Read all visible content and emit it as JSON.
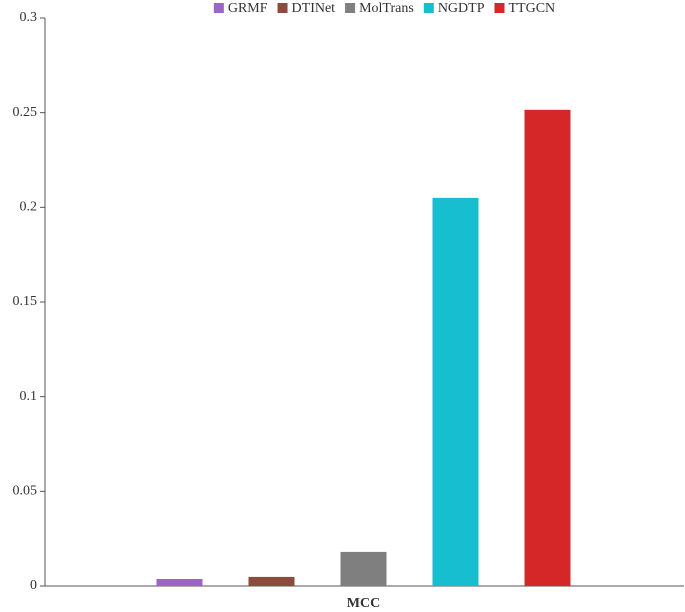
{
  "chart_data": {
    "type": "bar",
    "categories": [
      "MCC"
    ],
    "series": [
      {
        "name": "GRMF",
        "color": "#9b64c8",
        "values": [
          0.0037
        ]
      },
      {
        "name": "DTINet",
        "color": "#8b4c3e",
        "values": [
          0.0048
        ]
      },
      {
        "name": "MolTrans",
        "color": "#7f7f7f",
        "values": [
          0.018
        ]
      },
      {
        "name": "NGDTP",
        "color": "#17becf",
        "values": [
          0.205
        ]
      },
      {
        "name": "TTGCN",
        "color": "#d62728",
        "values": [
          0.2515
        ]
      }
    ],
    "ylim": [
      0,
      0.3
    ],
    "yticks": [
      0,
      0.05,
      0.1,
      0.15,
      0.2,
      0.25,
      0.3
    ],
    "grid": false,
    "legend": "top"
  }
}
